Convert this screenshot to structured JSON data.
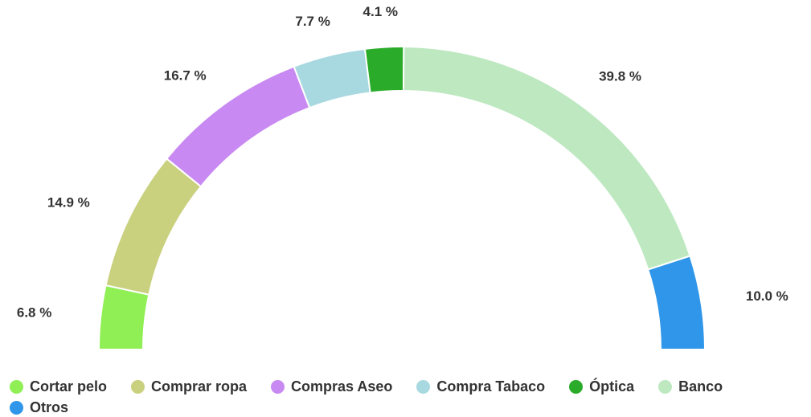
{
  "chart_data": {
    "type": "semi-donut",
    "categories": [
      "Cortar pelo",
      "Comprar ropa",
      "Compras Aseo",
      "Compra Tabaco",
      "Óptica",
      "Banco",
      "Otros"
    ],
    "values": [
      6.8,
      14.9,
      16.7,
      7.7,
      4.1,
      39.8,
      10.0
    ],
    "value_labels": [
      "6.8 %",
      "14.9 %",
      "16.7 %",
      "7.7 %",
      "4.1 %",
      "39.8 %",
      "10.0 %"
    ],
    "colors": [
      "#8fef55",
      "#c9d17e",
      "#c88af2",
      "#a8d8e0",
      "#2aab2a",
      "#bde8c0",
      "#2f96ea"
    ],
    "legend": "bottom"
  }
}
